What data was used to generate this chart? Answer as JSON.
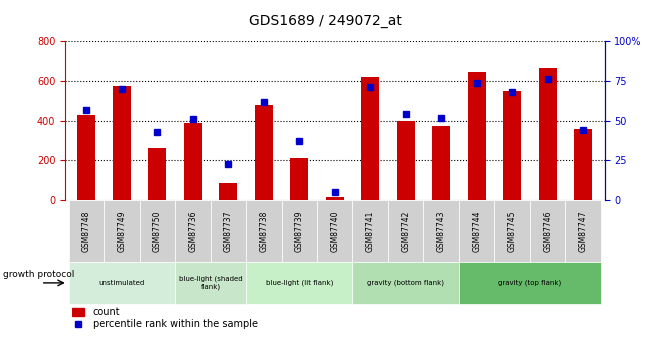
{
  "title": "GDS1689 / 249072_at",
  "samples": [
    "GSM87748",
    "GSM87749",
    "GSM87750",
    "GSM87736",
    "GSM87737",
    "GSM87738",
    "GSM87739",
    "GSM87740",
    "GSM87741",
    "GSM87742",
    "GSM87743",
    "GSM87744",
    "GSM87745",
    "GSM87746",
    "GSM87747"
  ],
  "counts": [
    430,
    575,
    265,
    390,
    88,
    480,
    210,
    18,
    620,
    398,
    375,
    645,
    548,
    668,
    358
  ],
  "percentiles": [
    57,
    70,
    43,
    51,
    23,
    62,
    37,
    5,
    71,
    54,
    52,
    74,
    68,
    76,
    44
  ],
  "groups": [
    {
      "label": "unstimulated",
      "start": 0,
      "end": 3,
      "color": "#d4edda"
    },
    {
      "label": "blue-light (shaded\nflank)",
      "start": 3,
      "end": 5,
      "color": "#c8e6c9"
    },
    {
      "label": "blue-light (lit flank)",
      "start": 5,
      "end": 8,
      "color": "#c8f0c8"
    },
    {
      "label": "gravity (bottom flank)",
      "start": 8,
      "end": 11,
      "color": "#b2dfb2"
    },
    {
      "label": "gravity (top flank)",
      "start": 11,
      "end": 15,
      "color": "#66bb6a"
    }
  ],
  "bar_color": "#cc0000",
  "dot_color": "#0000cc",
  "left_axis_color": "#cc0000",
  "right_axis_color": "#0000cc",
  "ylim_left": [
    0,
    800
  ],
  "ylim_right": [
    0,
    100
  ],
  "yticks_left": [
    0,
    200,
    400,
    600,
    800
  ],
  "yticks_right": [
    0,
    25,
    50,
    75,
    100
  ],
  "ytick_labels_right": [
    "0",
    "25",
    "50",
    "75",
    "100%"
  ],
  "growth_protocol_label": "growth protocol",
  "legend_count": "count",
  "legend_percentile": "percentile rank within the sample",
  "header_bg": "#d0d0d0",
  "group_border_color": "white"
}
